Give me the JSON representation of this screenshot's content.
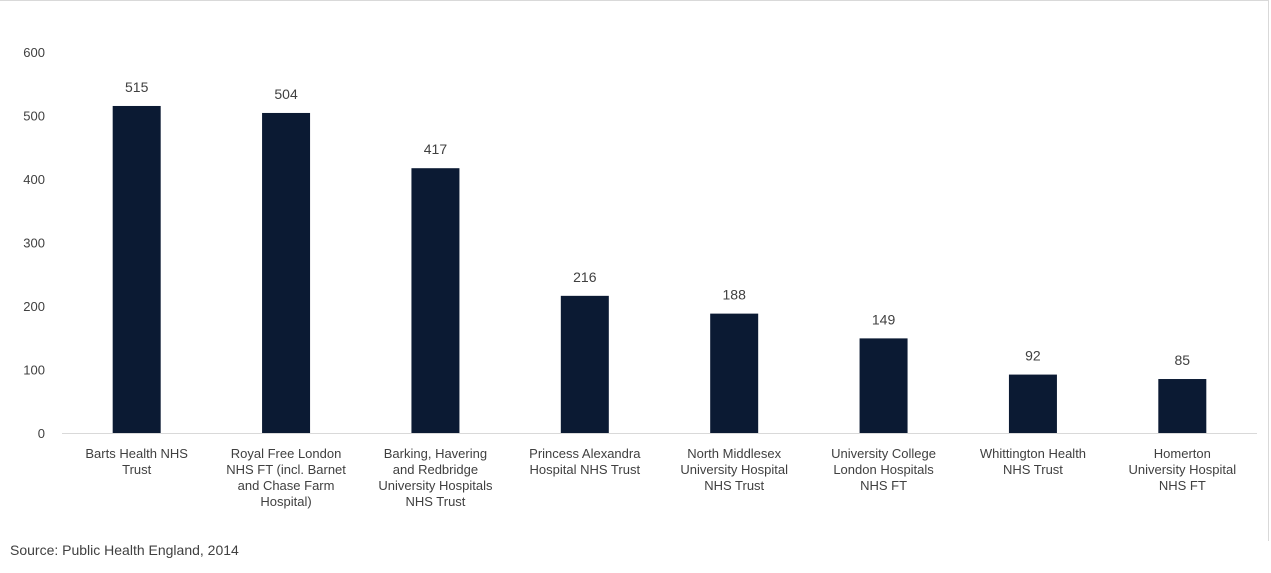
{
  "chart_data": {
    "type": "bar",
    "categories": [
      [
        "Barts Health NHS",
        "Trust"
      ],
      [
        "Royal Free London",
        "NHS FT (incl. Barnet",
        "and Chase Farm",
        "Hospital)"
      ],
      [
        "Barking, Havering",
        "and Redbridge",
        "University Hospitals",
        "NHS Trust"
      ],
      [
        "Princess Alexandra",
        "Hospital NHS Trust"
      ],
      [
        "North Middlesex",
        "University Hospital",
        "NHS Trust"
      ],
      [
        "University College",
        "London Hospitals",
        "NHS  FT"
      ],
      [
        "Whittington Health",
        "NHS Trust"
      ],
      [
        "Homerton",
        "University Hospital",
        "NHS FT"
      ]
    ],
    "values": [
      515,
      504,
      417,
      216,
      188,
      149,
      92,
      85
    ],
    "data_labels": [
      "515",
      "504",
      "417",
      "216",
      "188",
      "149",
      "92",
      "85"
    ],
    "ylim": [
      0,
      600
    ],
    "yticks": [
      "0",
      "100",
      "200",
      "300",
      "400",
      "500",
      "600"
    ],
    "grid": false,
    "legend": "none",
    "bar_color": "#0b1a33",
    "title": "",
    "xlabel": "",
    "ylabel": ""
  },
  "source": "Source: Public Health England, 2014"
}
